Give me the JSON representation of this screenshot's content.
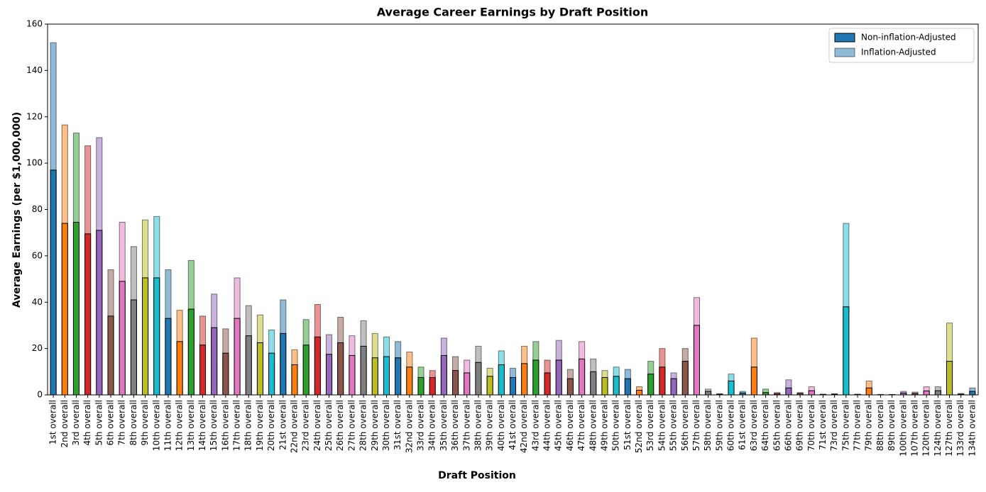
{
  "chart_data": {
    "type": "bar",
    "title": "Average Career Earnings by Draft Position",
    "xlabel": "Draft Position",
    "ylabel": "Average Earnings (per $1,000,000)",
    "categories": [
      "1st overall",
      "2nd overall",
      "3rd overall",
      "4th overall",
      "5th overall",
      "6th overall",
      "7th overall",
      "8th overall",
      "9th overall",
      "10th overall",
      "11th overall",
      "12th overall",
      "13th overall",
      "14th overall",
      "15th overall",
      "16th overall",
      "17th overall",
      "18th overall",
      "19th overall",
      "20th overall",
      "21st overall",
      "22nd overall",
      "23rd overall",
      "24th overall",
      "25th overall",
      "26th overall",
      "27th overall",
      "28th overall",
      "29th overall",
      "30th overall",
      "31st overall",
      "32nd overall",
      "33rd overall",
      "34th overall",
      "35th overall",
      "36th overall",
      "37th overall",
      "38th overall",
      "39th overall",
      "40th overall",
      "41st overall",
      "42nd overall",
      "43rd overall",
      "44th overall",
      "45th overall",
      "46th overall",
      "47th overall",
      "48th overall",
      "49th overall",
      "50th overall",
      "51st overall",
      "52nd overall",
      "53rd overall",
      "54th overall",
      "55th overall",
      "56th overall",
      "57th overall",
      "58th overall",
      "59th overall",
      "60th overall",
      "61st overall",
      "63rd overall",
      "64th overall",
      "65th overall",
      "66th overall",
      "69th overall",
      "70th overall",
      "71st overall",
      "73rd overall",
      "75th overall",
      "77th overall",
      "79th overall",
      "88th overall",
      "89th overall",
      "100th overall",
      "107th overall",
      "120th overall",
      "124th overall",
      "127th overall",
      "133rd overall",
      "134th overall"
    ],
    "series": [
      {
        "name": "Non-inflation-Adjusted",
        "color": "#1f77b4",
        "alpha": 1,
        "values": [
          97,
          74,
          74.5,
          69.5,
          71,
          34,
          49,
          41,
          50.5,
          50.5,
          33,
          23,
          37,
          21.5,
          29,
          18,
          33,
          25.5,
          22.5,
          18,
          26.5,
          13,
          21.5,
          25,
          17.5,
          22.5,
          17,
          21,
          16,
          16.5,
          16,
          12,
          7.5,
          7.5,
          17,
          10.5,
          9.5,
          14,
          8,
          13,
          7.5,
          13.5,
          15,
          9.5,
          15,
          7,
          15.5,
          10,
          7.5,
          8,
          7,
          2,
          9,
          12,
          7,
          14.5,
          30,
          1.5,
          0.3,
          6,
          0.8,
          12,
          1,
          0.5,
          3,
          0.6,
          1.8,
          0.2,
          0.3,
          38,
          0.2,
          3,
          0.1,
          0.1,
          0.8,
          0.6,
          1.7,
          1.8,
          14.5,
          0.3,
          1.5
        ]
      },
      {
        "name": "Inflation-Adjusted",
        "color": "#1f77b4",
        "alpha": 0.5,
        "values": [
          152,
          116.5,
          113,
          107.5,
          111,
          54,
          74.5,
          64,
          75.5,
          77,
          54,
          36.5,
          58,
          34,
          43.5,
          28.5,
          50.5,
          38.5,
          34.5,
          28,
          41,
          19.5,
          32.5,
          39,
          26,
          33.5,
          25.5,
          32,
          26.5,
          25,
          23,
          18.5,
          12,
          10.5,
          24.5,
          16.5,
          15,
          21,
          11.5,
          19,
          11.5,
          21,
          23,
          15,
          23.5,
          11,
          23,
          15.5,
          10.5,
          12,
          11,
          3.5,
          14.5,
          20,
          9.5,
          20,
          42,
          2.5,
          0.5,
          9,
          1.5,
          24.5,
          2.5,
          1,
          6.5,
          1,
          3.5,
          0.3,
          0.5,
          74,
          0.3,
          6,
          0.2,
          0.2,
          1.5,
          1.2,
          3.5,
          3.5,
          31,
          0.6,
          3
        ]
      }
    ],
    "palette": [
      "#1f77b4",
      "#ff7f0e",
      "#2ca02c",
      "#d62728",
      "#9467bd",
      "#8c564b",
      "#e377c2",
      "#7f7f7f",
      "#bcbd22",
      "#17becf"
    ],
    "ylim": [
      0,
      160
    ],
    "yticks": [
      0,
      20,
      40,
      60,
      80,
      100,
      120,
      140,
      160
    ],
    "legend": "upper right"
  }
}
